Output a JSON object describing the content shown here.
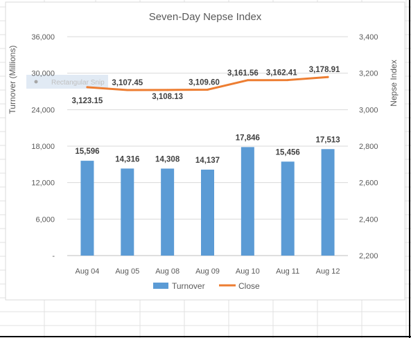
{
  "colors": {
    "bar": "#5b9bd5",
    "line": "#ed7d31",
    "grid": "#d9d9d9",
    "text": "#595959"
  },
  "overlay": {
    "label": "Rectangular Snip"
  },
  "chart_data": {
    "type": "bar",
    "title": "Seven-Day Nepse Index",
    "categories": [
      "Aug 04",
      "Aug 05",
      "Aug 08",
      "Aug 09",
      "Aug 10",
      "Aug 11",
      "Aug 12"
    ],
    "ylabel": "Turnover (Millions)",
    "y2label": "Nepse Index",
    "ylim": [
      0,
      36000
    ],
    "y2lim": [
      2200,
      3400
    ],
    "yticks": [
      "-",
      "6,000",
      "12,000",
      "18,000",
      "24,000",
      "30,000",
      "36,000"
    ],
    "yticks_values": [
      0,
      6000,
      12000,
      18000,
      24000,
      30000,
      36000
    ],
    "y2ticks": [
      "2,200",
      "2,400",
      "2,600",
      "2,800",
      "3,000",
      "3,200",
      "3,400"
    ],
    "y2ticks_values": [
      2200,
      2400,
      2600,
      2800,
      3000,
      3200,
      3400
    ],
    "grid": true,
    "legend_position": "bottom",
    "series": [
      {
        "name": "Turnover",
        "type": "bar",
        "axis": "left",
        "values": [
          15596,
          14316,
          14308,
          14137,
          17846,
          15456,
          17513
        ],
        "labels": [
          "15,596",
          "14,316",
          "14,308",
          "14,137",
          "17,846",
          "15,456",
          "17,513"
        ]
      },
      {
        "name": "Close",
        "type": "line",
        "axis": "right",
        "values": [
          3123.15,
          3107.45,
          3108.13,
          3109.6,
          3161.56,
          3162.41,
          3178.91
        ],
        "labels": [
          "3,123.15",
          "3,107.45",
          "3,108.13",
          "3,109.60",
          "3,161.56",
          "3,162.41",
          "3,178.91"
        ]
      }
    ]
  }
}
